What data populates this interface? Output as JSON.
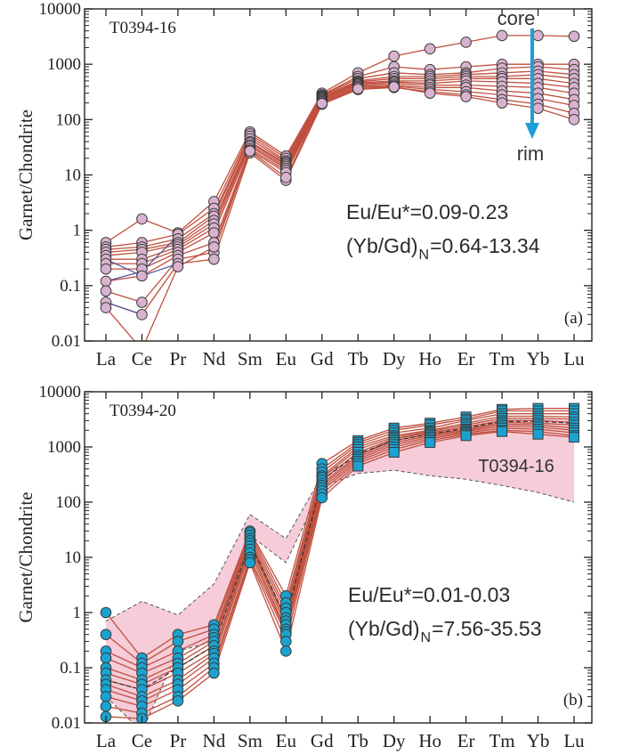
{
  "colors": {
    "line": "#c0503f",
    "marker_a": "#d9b2cf",
    "marker_b": "#1aa3d1",
    "marker_edge": "#3a3a3a",
    "band": "#f4c6d4",
    "arrow": "#1c9fd8",
    "axis": "#222222",
    "blue_line": "#4a4f9a"
  },
  "chart_data": [
    {
      "type": "line",
      "panel": "(a)",
      "sample": "T0394-16",
      "title": "",
      "xlabel": "",
      "ylabel": "Garnet/Chondrite",
      "yscale": "log",
      "ylim": [
        0.01,
        10000
      ],
      "ytick_labels": [
        "0.01",
        "0.1",
        "1",
        "10",
        "100",
        "1000",
        "10000"
      ],
      "categories": [
        "La",
        "Ce",
        "Pr",
        "Nd",
        "Sm",
        "Eu",
        "Gd",
        "Tb",
        "Dy",
        "Ho",
        "Er",
        "Tm",
        "Yb",
        "Lu"
      ],
      "annotations": [
        "Eu/Eu*=0.09-0.23",
        "(Yb/Gd)",
        "N",
        "=0.64-13.34"
      ],
      "arrow": {
        "top_label": "core",
        "bottom_label": "rim"
      },
      "series": [
        {
          "name": "a1",
          "values": [
            0.6,
            1.6,
            0.9,
            3.3,
            60,
            22,
            300,
            700,
            1400,
            1900,
            2500,
            3300,
            3300,
            3200
          ]
        },
        {
          "name": "a2",
          "values": [
            0.5,
            0.6,
            0.85,
            2.5,
            55,
            20,
            280,
            600,
            900,
            800,
            900,
            1000,
            1000,
            1000
          ]
        },
        {
          "name": "a3",
          "values": [
            0.45,
            0.5,
            0.7,
            2.0,
            50,
            18,
            270,
            550,
            700,
            650,
            700,
            850,
            900,
            800
          ]
        },
        {
          "name": "a4",
          "values": [
            0.4,
            0.45,
            0.6,
            1.8,
            45,
            17,
            260,
            500,
            600,
            600,
            650,
            700,
            750,
            650
          ]
        },
        {
          "name": "a5",
          "values": [
            0.35,
            0.4,
            0.55,
            1.5,
            40,
            16,
            250,
            480,
            550,
            550,
            600,
            600,
            650,
            550
          ]
        },
        {
          "name": "a6",
          "values": [
            0.3,
            0.3,
            0.5,
            1.3,
            38,
            15,
            240,
            460,
            500,
            500,
            550,
            550,
            550,
            450
          ]
        },
        {
          "name": "a7",
          "values": [
            0.25,
            0.25,
            0.45,
            1.1,
            35,
            14,
            230,
            440,
            480,
            450,
            500,
            480,
            450,
            380
          ]
        },
        {
          "name": "a8",
          "values": [
            0.2,
            0.2,
            0.4,
            0.9,
            33,
            13,
            220,
            420,
            450,
            420,
            420,
            400,
            380,
            300
          ]
        },
        {
          "name": "a9",
          "values": [
            0.12,
            0.15,
            0.35,
            0.6,
            30,
            12,
            210,
            400,
            420,
            380,
            380,
            330,
            300,
            230
          ]
        },
        {
          "name": "a10",
          "values": [
            0.08,
            0.05,
            0.3,
            0.4,
            28,
            11,
            200,
            380,
            400,
            350,
            320,
            280,
            240,
            180
          ]
        },
        {
          "name": "a11",
          "values": [
            0.05,
            0.03,
            0.25,
            0.3,
            25,
            8,
            190,
            350,
            380,
            320,
            280,
            230,
            190,
            130
          ]
        },
        {
          "name": "a12",
          "values": [
            0.04,
            0.007,
            0.22,
            0.5,
            27,
            9,
            195,
            360,
            390,
            300,
            260,
            200,
            160,
            100
          ]
        }
      ],
      "blue_series": [
        {
          "name": "a-blue1",
          "values": [
            0.05,
            0.03
          ]
        },
        {
          "name": "a-blue2",
          "values": [
            0.12,
            0.18,
            0.8
          ]
        },
        {
          "name": "a-blue3",
          "values": [
            0.3,
            0.15,
            0.25
          ]
        }
      ]
    },
    {
      "type": "line",
      "panel": "(b)",
      "sample": "T0394-20",
      "title": "",
      "xlabel": "",
      "ylabel": "Garnet/Chondrite",
      "yscale": "log",
      "ylim": [
        0.01,
        10000
      ],
      "ytick_labels": [
        "0.01",
        "0.1",
        "1",
        "10",
        "100",
        "1000",
        "10000"
      ],
      "categories": [
        "La",
        "Ce",
        "Pr",
        "Nd",
        "Sm",
        "Eu",
        "Gd",
        "Tb",
        "Dy",
        "Ho",
        "Er",
        "Tm",
        "Yb",
        "Lu"
      ],
      "annotations": [
        "Eu/Eu*=0.01-0.03",
        "(Yb/Gd)",
        "N",
        "=7.56-35.53"
      ],
      "reference_band": {
        "label": "T0394-16",
        "upper": [
          0.7,
          1.6,
          0.9,
          3.3,
          60,
          22,
          300,
          700,
          1400,
          1900,
          2500,
          3300,
          3300,
          3200
        ],
        "lower": [
          0.03,
          0.007,
          0.2,
          0.3,
          25,
          8,
          190,
          330,
          380,
          300,
          260,
          200,
          150,
          100
        ]
      },
      "series": [
        {
          "name": "b1",
          "values": [
            1.0,
            0.15,
            0.4,
            0.6,
            30,
            2.0,
            500,
            1300,
            2200,
            2700,
            3500,
            4800,
            5000,
            5000
          ]
        },
        {
          "name": "b2",
          "values": [
            0.4,
            0.12,
            0.3,
            0.5,
            28,
            1.5,
            400,
            1200,
            2000,
            2500,
            3200,
            4500,
            4500,
            4500
          ]
        },
        {
          "name": "b3",
          "values": [
            0.2,
            0.1,
            0.2,
            0.4,
            25,
            1.2,
            350,
            1100,
            1800,
            2200,
            3000,
            4000,
            4000,
            4000
          ]
        },
        {
          "name": "b4",
          "values": [
            0.15,
            0.08,
            0.15,
            0.35,
            22,
            1.0,
            300,
            1000,
            1600,
            2000,
            2700,
            3600,
            3600,
            3500
          ]
        },
        {
          "name": "b5",
          "values": [
            0.1,
            0.06,
            0.12,
            0.3,
            20,
            0.8,
            280,
            900,
            1500,
            1900,
            2500,
            3300,
            3300,
            3200
          ]
        },
        {
          "name": "b6",
          "values": [
            0.08,
            0.05,
            0.1,
            0.25,
            18,
            0.7,
            250,
            800,
            1400,
            1800,
            2300,
            3000,
            3000,
            2800
          ]
        },
        {
          "name": "b7",
          "values": [
            0.06,
            0.04,
            0.08,
            0.2,
            16,
            0.6,
            220,
            700,
            1300,
            1700,
            2100,
            2800,
            2700,
            2500
          ]
        },
        {
          "name": "b8",
          "values": [
            0.05,
            0.03,
            0.06,
            0.18,
            14,
            0.5,
            200,
            650,
            1200,
            1600,
            2000,
            2600,
            2500,
            2200
          ]
        },
        {
          "name": "b9",
          "values": [
            0.04,
            0.025,
            0.05,
            0.15,
            12,
            0.45,
            180,
            600,
            1100,
            1500,
            1900,
            2400,
            2300,
            2000
          ]
        },
        {
          "name": "b10",
          "values": [
            0.03,
            0.02,
            0.04,
            0.12,
            10,
            0.4,
            160,
            550,
            1000,
            1400,
            1800,
            2200,
            2100,
            1800
          ]
        },
        {
          "name": "b11",
          "values": [
            0.02,
            0.015,
            0.03,
            0.1,
            9,
            0.3,
            140,
            500,
            900,
            1300,
            1700,
            2000,
            1900,
            1600
          ]
        },
        {
          "name": "b12",
          "values": [
            0.013,
            0.012,
            0.025,
            0.08,
            8,
            0.2,
            120,
            450,
            800,
            1200,
            1600,
            1900,
            1700,
            1500
          ]
        }
      ],
      "dashed_mean": {
        "name": "b-mean",
        "values": [
          0.06,
          0.04,
          0.1,
          0.25,
          18,
          0.8,
          250,
          750,
          1300,
          1700,
          2200,
          2900,
          2900,
          2700
        ]
      }
    }
  ]
}
